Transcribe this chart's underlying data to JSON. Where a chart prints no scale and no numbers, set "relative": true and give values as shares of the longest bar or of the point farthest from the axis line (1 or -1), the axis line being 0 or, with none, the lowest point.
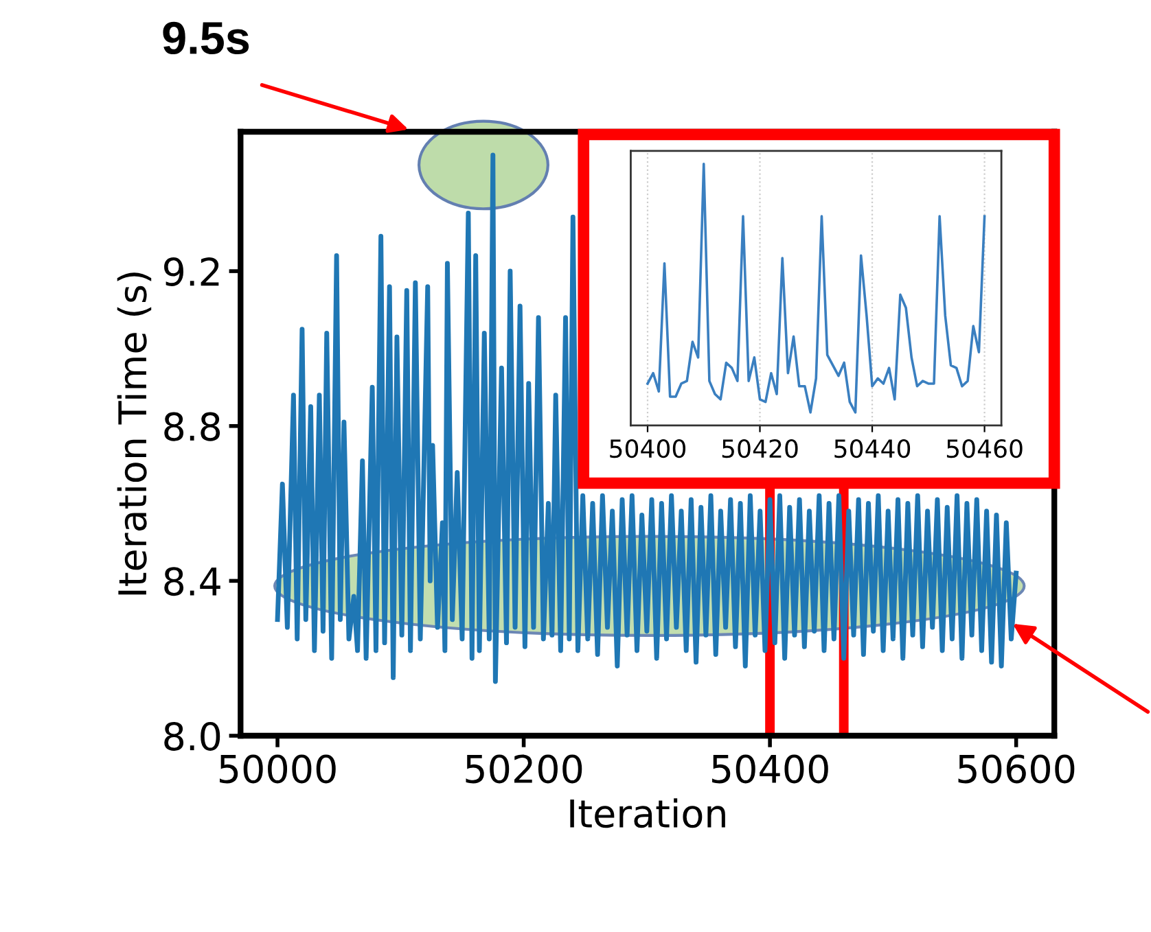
{
  "chart_data": [
    {
      "type": "line",
      "xlabel": "Iteration",
      "ylabel": "Iteration Time (s)",
      "xlim": [
        49970,
        50631
      ],
      "ylim": [
        8.0,
        9.56
      ],
      "xticks": [
        50000,
        50200,
        50400,
        50600
      ],
      "yticks": [
        {
          "value": 8.0,
          "label": "8.0"
        },
        {
          "value": 8.4,
          "label": "8.4"
        },
        {
          "value": 8.8,
          "label": "8.8"
        },
        {
          "value": 9.2,
          "label": "9.2"
        }
      ],
      "grid": false,
      "legend": false,
      "x": [
        50000,
        50004,
        50008,
        50013,
        50016,
        50020,
        50023,
        50027,
        50030,
        50034,
        50037,
        50040,
        50044,
        50048,
        50051,
        50054,
        50058,
        50062,
        50065,
        50069,
        50072,
        50077,
        50080,
        50084,
        50087,
        50091,
        50094,
        50097,
        50101,
        50105,
        50108,
        50112,
        50116,
        50122,
        50124,
        50126,
        50130,
        50134,
        50136,
        50138,
        50142,
        50146,
        50150,
        50155,
        50158,
        50161,
        50164,
        50168,
        50172,
        50175,
        50177,
        50182,
        50186,
        50189,
        50193,
        50197,
        50201,
        50204,
        50208,
        50212,
        50216,
        50220,
        50223,
        50226,
        50230,
        50234,
        50237,
        50240,
        50244,
        50248,
        50252,
        50256,
        50260,
        50264,
        50268,
        50272,
        50276,
        50280,
        50284,
        50288,
        50292,
        50296,
        50300,
        50304,
        50308,
        50312,
        50316,
        50320,
        50324,
        50328,
        50332,
        50336,
        50340,
        50344,
        50348,
        50352,
        50356,
        50360,
        50364,
        50368,
        50372,
        50376,
        50380,
        50384,
        50388,
        50392,
        50396,
        50400,
        50404,
        50408,
        50412,
        50416,
        50420,
        50424,
        50428,
        50432,
        50436,
        50440,
        50444,
        50448,
        50452,
        50456,
        50460,
        50464,
        50468,
        50472,
        50476,
        50480,
        50484,
        50488,
        50492,
        50496,
        50500,
        50504,
        50508,
        50512,
        50516,
        50520,
        50524,
        50528,
        50532,
        50536,
        50540,
        50544,
        50548,
        50552,
        50556,
        50560,
        50564,
        50568,
        50572,
        50576,
        50580,
        50584,
        50588,
        50592,
        50596,
        50600
      ],
      "series": [
        {
          "color": "#1f77b4",
          "values": [
            8.3,
            8.65,
            8.28,
            8.88,
            8.25,
            9.05,
            8.3,
            8.85,
            8.22,
            8.88,
            8.27,
            9.04,
            8.2,
            9.24,
            8.3,
            8.81,
            8.25,
            8.36,
            8.22,
            8.71,
            8.2,
            8.9,
            8.22,
            9.29,
            8.24,
            9.16,
            8.15,
            9.03,
            8.26,
            9.15,
            8.22,
            9.17,
            8.25,
            9.16,
            8.4,
            8.75,
            8.28,
            8.55,
            8.22,
            9.22,
            8.3,
            8.68,
            8.25,
            9.35,
            8.2,
            9.24,
            8.22,
            9.04,
            8.25,
            9.5,
            8.14,
            8.95,
            8.24,
            9.2,
            8.28,
            9.11,
            8.23,
            8.91,
            8.28,
            9.08,
            8.25,
            8.6,
            8.26,
            8.88,
            8.22,
            9.08,
            8.25,
            9.34,
            8.22,
            8.62,
            8.25,
            8.6,
            8.21,
            8.62,
            8.28,
            8.58,
            8.18,
            8.61,
            8.26,
            8.62,
            8.22,
            8.57,
            8.27,
            8.61,
            8.2,
            8.6,
            8.25,
            8.62,
            8.28,
            8.58,
            8.22,
            8.61,
            8.19,
            8.59,
            8.26,
            8.62,
            8.21,
            8.58,
            8.28,
            8.61,
            8.23,
            8.6,
            8.18,
            8.62,
            8.26,
            8.58,
            8.22,
            8.61,
            8.24,
            8.62,
            8.2,
            8.59,
            8.26,
            8.61,
            8.23,
            8.58,
            8.27,
            8.62,
            8.22,
            8.6,
            8.25,
            8.62,
            8.2,
            8.58,
            8.26,
            8.61,
            8.21,
            8.6,
            8.27,
            8.62,
            8.22,
            8.58,
            8.25,
            8.61,
            8.2,
            8.6,
            8.26,
            8.62,
            8.23,
            8.58,
            8.28,
            8.61,
            8.22,
            8.59,
            8.25,
            8.62,
            8.2,
            8.6,
            8.26,
            8.61,
            8.22,
            8.58,
            8.19,
            8.57,
            8.18,
            8.55,
            8.25,
            8.42
          ]
        }
      ],
      "ref_lines": [
        {
          "axis": "x",
          "value": 50400,
          "color": "#ff0000"
        },
        {
          "axis": "x",
          "value": 50460,
          "color": "#ff0000"
        }
      ],
      "annotations": [
        "9.5s"
      ]
    },
    {
      "type": "line",
      "relative": true,
      "tick_labels": "x",
      "xlim": [
        50397,
        50463
      ],
      "xticks": [
        50400,
        50420,
        50440,
        50460
      ],
      "grid": "x",
      "legend": false,
      "x": [
        50400,
        50401,
        50402,
        50403,
        50404,
        50405,
        50406,
        50407,
        50408,
        50409,
        50410,
        50411,
        50412,
        50413,
        50414,
        50415,
        50416,
        50417,
        50418,
        50419,
        50420,
        50421,
        50422,
        50423,
        50424,
        50425,
        50426,
        50427,
        50428,
        50429,
        50430,
        50431,
        50432,
        50433,
        50434,
        50435,
        50436,
        50437,
        50438,
        50439,
        50440,
        50441,
        50442,
        50443,
        50444,
        50445,
        50446,
        50447,
        50448,
        50449,
        50450,
        50451,
        50452,
        50453,
        50454,
        50455,
        50456,
        50457,
        50458,
        50459,
        50460
      ],
      "series": [
        {
          "color": "#3a7fc0",
          "values": [
            0.16,
            0.2,
            0.13,
            0.62,
            0.11,
            0.11,
            0.16,
            0.17,
            0.32,
            0.26,
            1.0,
            0.17,
            0.12,
            0.1,
            0.24,
            0.22,
            0.17,
            0.8,
            0.17,
            0.26,
            0.1,
            0.09,
            0.2,
            0.12,
            0.64,
            0.2,
            0.34,
            0.15,
            0.15,
            0.05,
            0.18,
            0.8,
            0.27,
            0.23,
            0.19,
            0.24,
            0.09,
            0.05,
            0.65,
            0.42,
            0.15,
            0.18,
            0.16,
            0.22,
            0.1,
            0.5,
            0.45,
            0.26,
            0.15,
            0.17,
            0.16,
            0.16,
            0.8,
            0.42,
            0.23,
            0.22,
            0.15,
            0.17,
            0.38,
            0.28,
            0.8
          ]
        }
      ]
    }
  ]
}
